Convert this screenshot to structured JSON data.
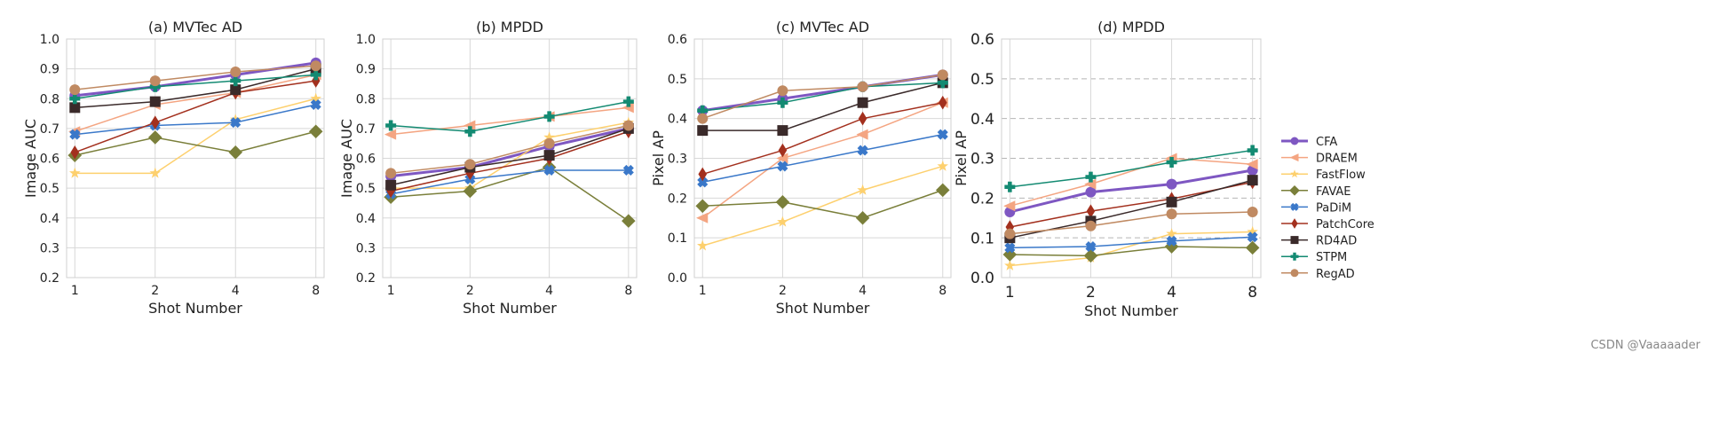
{
  "watermark": "CSDN @Vaaaaader",
  "legend": {
    "placement": "right"
  },
  "series_styles": [
    {
      "name": "CFA",
      "color": "#7e57c2",
      "marker": "circle",
      "bold": true
    },
    {
      "name": "DRAEM",
      "color": "#f4a582",
      "marker": "triangle-left"
    },
    {
      "name": "FastFlow",
      "color": "#fdd06e",
      "marker": "star"
    },
    {
      "name": "FAVAE",
      "color": "#7a7f3a",
      "marker": "diamond"
    },
    {
      "name": "PaDiM",
      "color": "#3a78c9",
      "marker": "x"
    },
    {
      "name": "PatchCore",
      "color": "#a3301e",
      "marker": "thin-diamond"
    },
    {
      "name": "RD4AD",
      "color": "#3a2a2a",
      "marker": "square"
    },
    {
      "name": "STPM",
      "color": "#138a72",
      "marker": "plus"
    },
    {
      "name": "RegAD",
      "color": "#c08a62",
      "marker": "circle"
    }
  ],
  "chart_data": [
    {
      "type": "line",
      "title": "(a) MVTec AD",
      "xlabel": "Shot Number",
      "ylabel": "Image AUC",
      "categories": [
        "1",
        "2",
        "4",
        "8"
      ],
      "ylim": [
        0.2,
        1.0
      ],
      "yticks": [
        "0.2",
        "0.3",
        "0.4",
        "0.5",
        "0.6",
        "0.7",
        "0.8",
        "0.9",
        "1.0"
      ],
      "grid": "solid",
      "series": [
        {
          "name": "CFA",
          "values": [
            0.81,
            0.84,
            0.88,
            0.92
          ]
        },
        {
          "name": "DRAEM",
          "values": [
            0.69,
            0.78,
            0.82,
            0.88
          ]
        },
        {
          "name": "FastFlow",
          "values": [
            0.55,
            0.55,
            0.73,
            0.8
          ]
        },
        {
          "name": "FAVAE",
          "values": [
            0.61,
            0.67,
            0.62,
            0.69
          ]
        },
        {
          "name": "PaDiM",
          "values": [
            0.68,
            0.71,
            0.72,
            0.78
          ]
        },
        {
          "name": "PatchCore",
          "values": [
            0.62,
            0.72,
            0.82,
            0.86
          ]
        },
        {
          "name": "RD4AD",
          "values": [
            0.77,
            0.79,
            0.83,
            0.9
          ]
        },
        {
          "name": "STPM",
          "values": [
            0.8,
            0.84,
            0.86,
            0.88
          ]
        },
        {
          "name": "RegAD",
          "values": [
            0.83,
            0.86,
            0.89,
            0.91
          ]
        }
      ]
    },
    {
      "type": "line",
      "title": "(b) MPDD",
      "xlabel": "Shot Number",
      "ylabel": "Image AUC",
      "categories": [
        "1",
        "2",
        "4",
        "8"
      ],
      "ylim": [
        0.2,
        1.0
      ],
      "yticks": [
        "0.2",
        "0.3",
        "0.4",
        "0.5",
        "0.6",
        "0.7",
        "0.8",
        "0.9",
        "1.0"
      ],
      "grid": "solid",
      "series": [
        {
          "name": "CFA",
          "values": [
            0.54,
            0.57,
            0.64,
            0.7
          ]
        },
        {
          "name": "DRAEM",
          "values": [
            0.68,
            0.71,
            0.74,
            0.77
          ]
        },
        {
          "name": "FastFlow",
          "values": [
            0.5,
            0.5,
            0.67,
            0.72
          ]
        },
        {
          "name": "FAVAE",
          "values": [
            0.47,
            0.49,
            0.57,
            0.39
          ]
        },
        {
          "name": "PaDiM",
          "values": [
            0.48,
            0.53,
            0.56,
            0.56
          ]
        },
        {
          "name": "PatchCore",
          "values": [
            0.49,
            0.55,
            0.6,
            0.69
          ]
        },
        {
          "name": "RD4AD",
          "values": [
            0.51,
            0.57,
            0.61,
            0.7
          ]
        },
        {
          "name": "STPM",
          "values": [
            0.71,
            0.69,
            0.74,
            0.79
          ]
        },
        {
          "name": "RegAD",
          "values": [
            0.55,
            0.58,
            0.65,
            0.71
          ]
        }
      ]
    },
    {
      "type": "line",
      "title": "(c) MVTec AD",
      "xlabel": "Shot Number",
      "ylabel": "Pixel AP",
      "categories": [
        "1",
        "2",
        "4",
        "8"
      ],
      "ylim": [
        0.0,
        0.6
      ],
      "yticks": [
        "0.0",
        "0.1",
        "0.2",
        "0.3",
        "0.4",
        "0.5",
        "0.6"
      ],
      "grid": "solid",
      "series": [
        {
          "name": "CFA",
          "values": [
            0.42,
            0.45,
            0.48,
            0.51
          ]
        },
        {
          "name": "DRAEM",
          "values": [
            0.15,
            0.3,
            0.36,
            0.44
          ]
        },
        {
          "name": "FastFlow",
          "values": [
            0.08,
            0.14,
            0.22,
            0.28
          ]
        },
        {
          "name": "FAVAE",
          "values": [
            0.18,
            0.19,
            0.15,
            0.22
          ]
        },
        {
          "name": "PaDiM",
          "values": [
            0.24,
            0.28,
            0.32,
            0.36
          ]
        },
        {
          "name": "PatchCore",
          "values": [
            0.26,
            0.32,
            0.4,
            0.44
          ]
        },
        {
          "name": "RD4AD",
          "values": [
            0.37,
            0.37,
            0.44,
            0.49
          ]
        },
        {
          "name": "STPM",
          "values": [
            0.42,
            0.44,
            0.48,
            0.49
          ]
        },
        {
          "name": "RegAD",
          "values": [
            0.4,
            0.47,
            0.48,
            0.51
          ]
        }
      ]
    },
    {
      "type": "line",
      "title": "(d) MPDD",
      "xlabel": "Shot Number",
      "ylabel": "Pixel AP",
      "categories": [
        "1",
        "2",
        "4",
        "8"
      ],
      "ylim": [
        0.0,
        0.6
      ],
      "yticks": [
        "0.0",
        "0.1",
        "0.2",
        "0.3",
        "0.4",
        "0.5",
        "0.6"
      ],
      "grid": "dashed",
      "series": [
        {
          "name": "CFA",
          "values": [
            0.165,
            0.215,
            0.235,
            0.27
          ]
        },
        {
          "name": "DRAEM",
          "values": [
            0.18,
            0.235,
            0.3,
            0.285
          ]
        },
        {
          "name": "FastFlow",
          "values": [
            0.03,
            0.05,
            0.11,
            0.115
          ]
        },
        {
          "name": "FAVAE",
          "values": [
            0.058,
            0.055,
            0.078,
            0.075
          ]
        },
        {
          "name": "PaDiM",
          "values": [
            0.075,
            0.078,
            0.092,
            0.102
          ]
        },
        {
          "name": "PatchCore",
          "values": [
            0.127,
            0.167,
            0.198,
            0.24
          ]
        },
        {
          "name": "RD4AD",
          "values": [
            0.1,
            0.142,
            0.19,
            0.245
          ]
        },
        {
          "name": "STPM",
          "values": [
            0.228,
            0.253,
            0.29,
            0.32
          ]
        },
        {
          "name": "RegAD",
          "values": [
            0.11,
            0.13,
            0.16,
            0.165
          ]
        }
      ]
    }
  ]
}
